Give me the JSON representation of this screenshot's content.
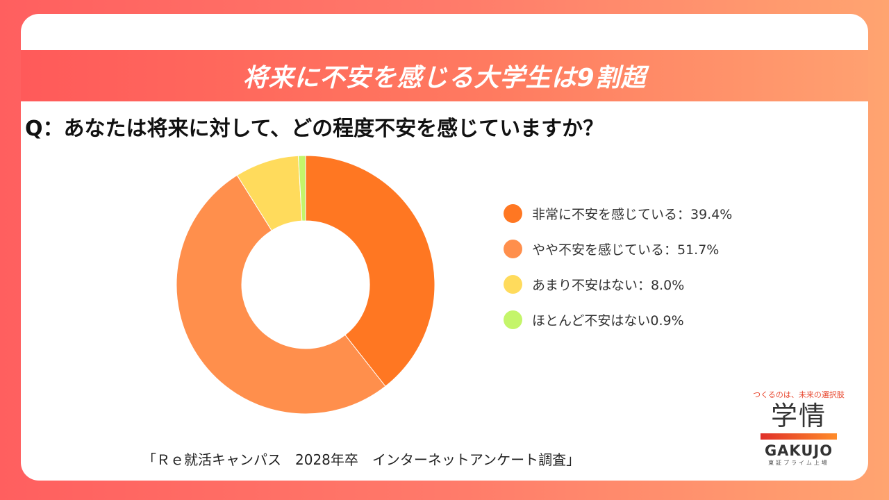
{
  "banner_title": "将来に不安を感じる大学生は9割超",
  "question": "Q：あなたは将来に対して、どの程度不安を感じていますか？",
  "source": "「Ｒｅ就活キャンパス　2028年卒　インターネットアンケート調査」",
  "logo": {
    "tagline": "つくるのは、未来の選択肢",
    "kanji": "学情",
    "english": "GAKUJO",
    "sub": "東証プライム上場"
  },
  "chart_data": {
    "type": "pie",
    "donut": true,
    "start": "top, clockwise",
    "legend_position": "right",
    "categories": [
      "非常に不安を感じている",
      "やや不安を感じている",
      "あまり不安はない",
      "ほとんど不安はない"
    ],
    "values": [
      39.4,
      51.7,
      8.0,
      0.9
    ],
    "legend_labels": [
      "非常に不安を感じている：39.4%",
      "やや不安を感じている：51.7%",
      "あまり不安はない：8.0%",
      "ほとんど不安はない0.9%"
    ],
    "colors": [
      "#ff7722",
      "#ff8f4c",
      "#ffdb5c",
      "#c4f56a"
    ]
  }
}
